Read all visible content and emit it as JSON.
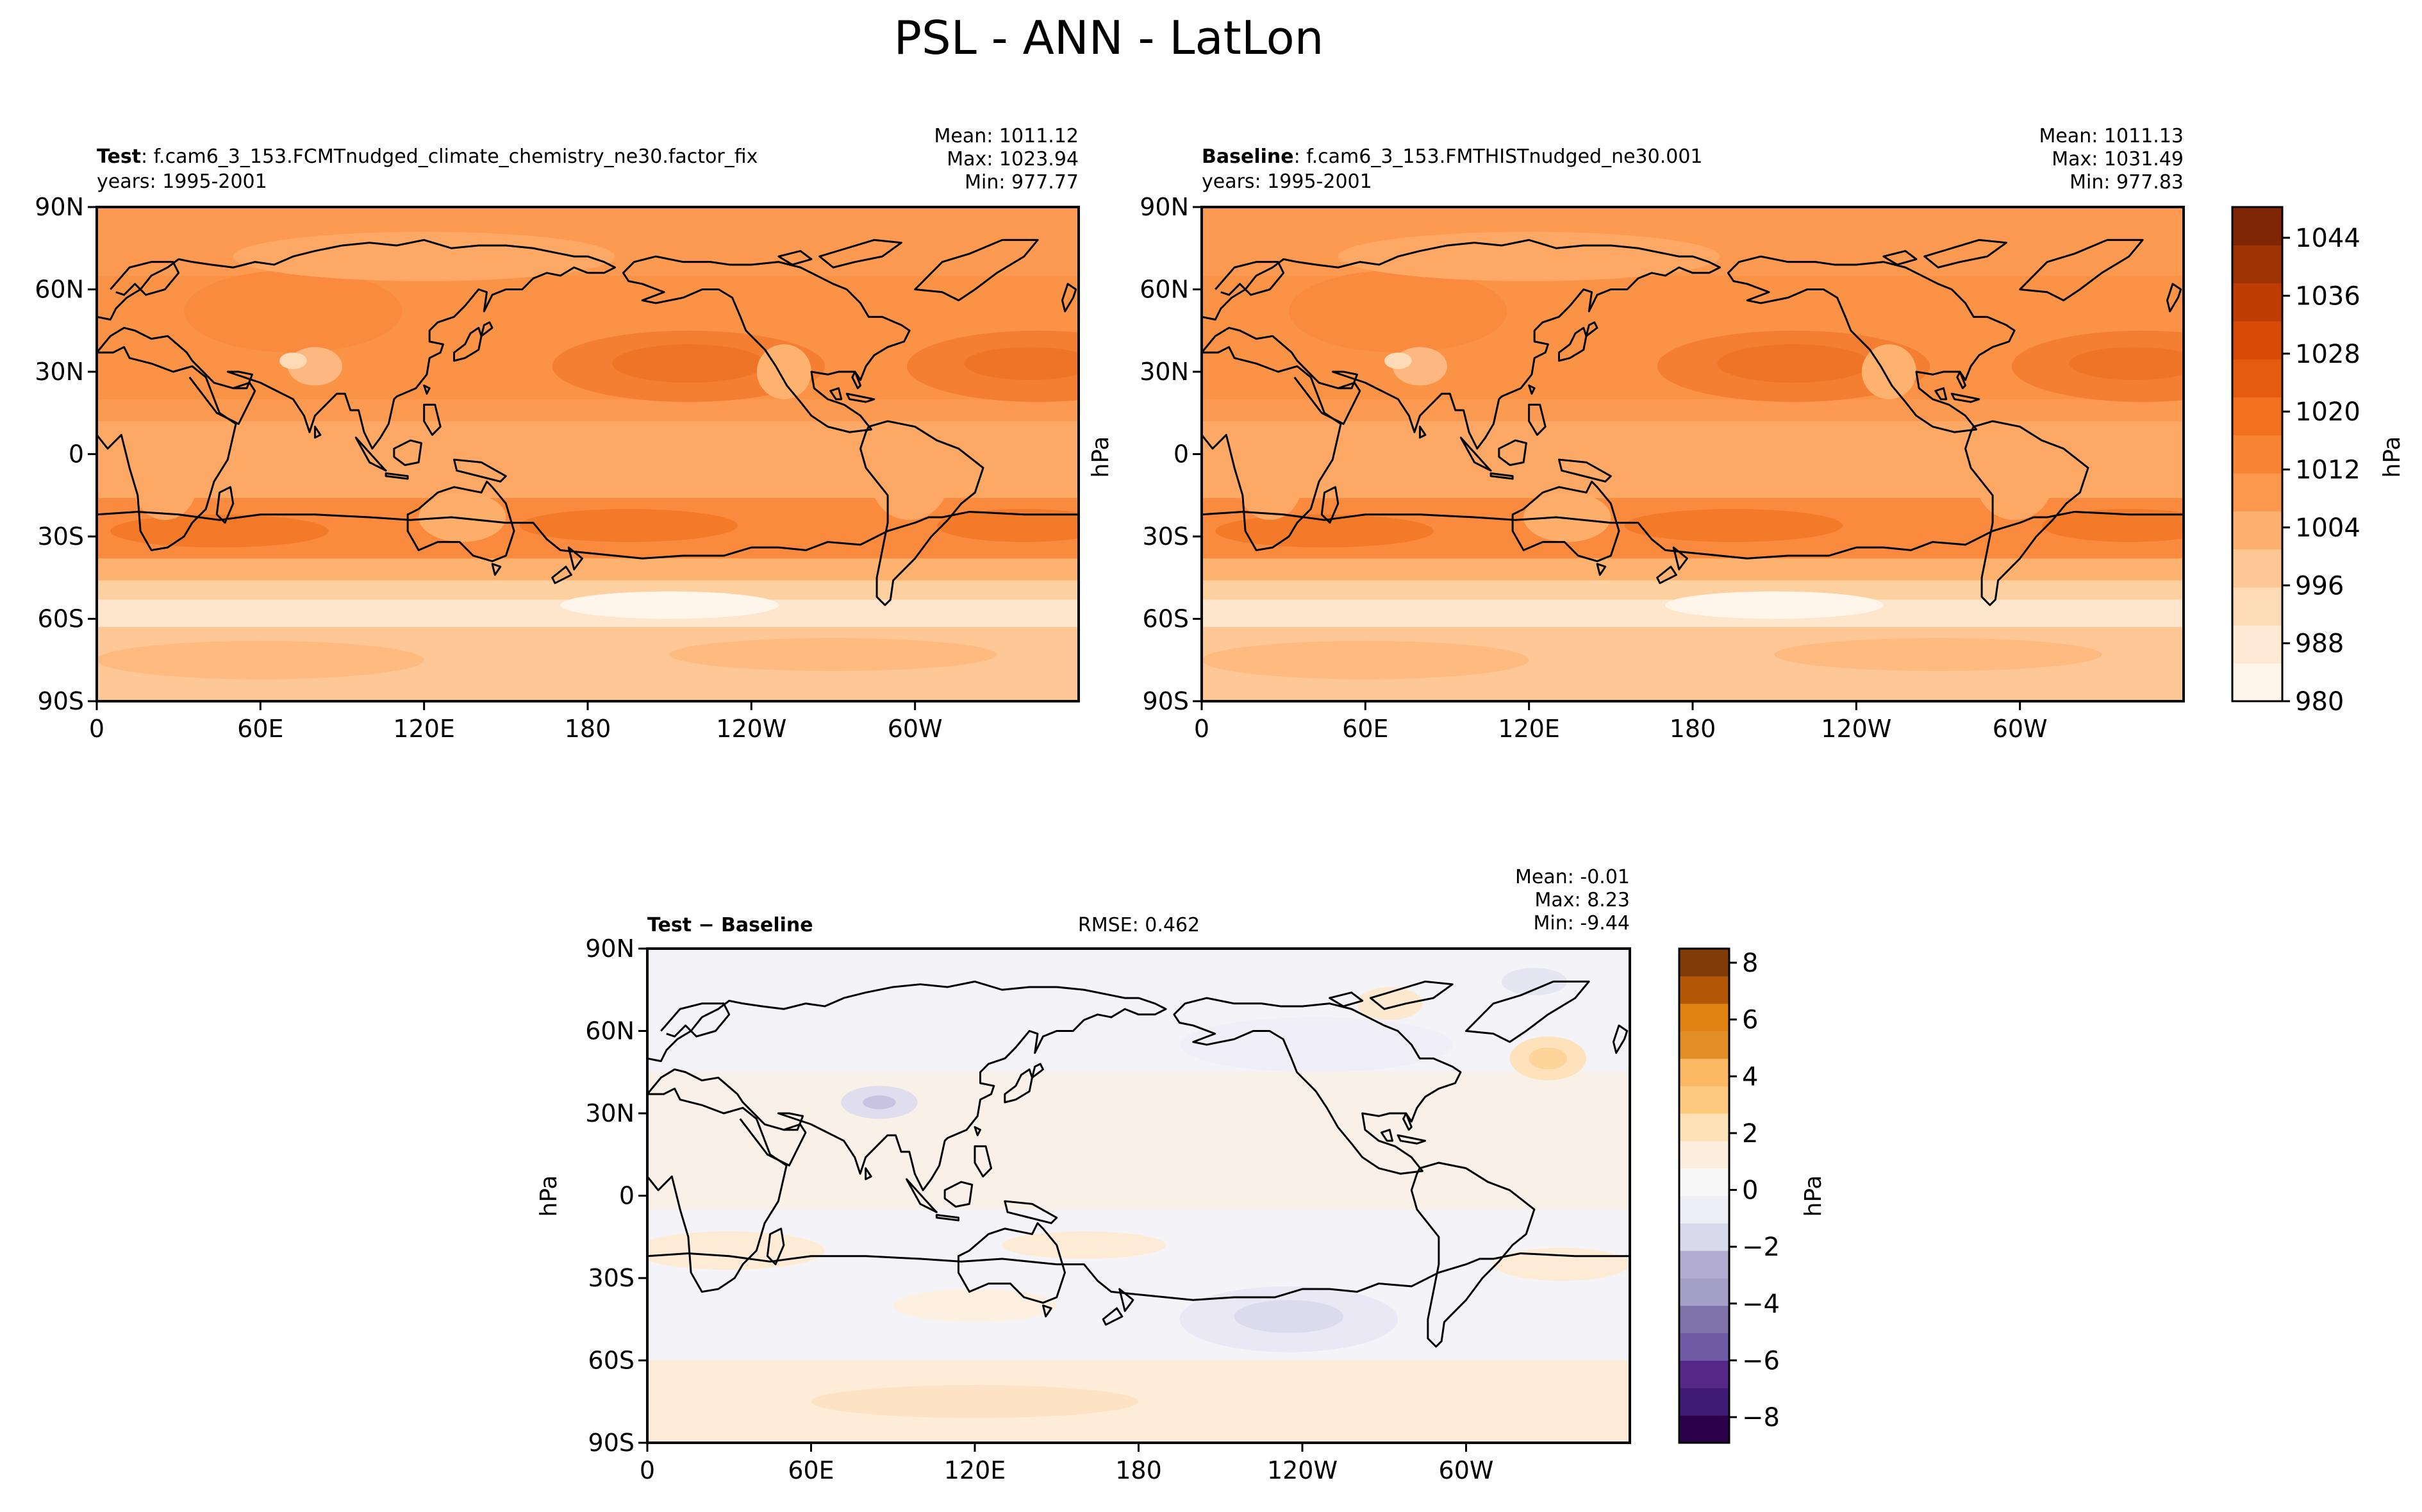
{
  "figure": {
    "title": "PSL - ANN - LatLon"
  },
  "axes": {
    "lat_ticks": [
      "90N",
      "60N",
      "30N",
      "0",
      "30S",
      "60S",
      "90S"
    ],
    "lon_ticks": [
      "0",
      "60E",
      "120E",
      "180",
      "120W",
      "60W"
    ]
  },
  "panels": [
    {
      "id": "test",
      "label_bold": "Test",
      "label_rest": ": f.cam6_3_153.FCMTnudged_climate_chemistry_ne30.factor_fix",
      "years": "years: 1995-2001",
      "stats": {
        "mean": "Mean: 1011.12",
        "max": "Max: 1023.94",
        "min": "Min: 977.77"
      }
    },
    {
      "id": "baseline",
      "label_bold": "Baseline",
      "label_rest": ": f.cam6_3_153.FMTHISTnudged_ne30.001",
      "years": "years: 1995-2001",
      "stats": {
        "mean": "Mean: 1011.13",
        "max": "Max: 1031.49",
        "min": "Min: 977.83"
      }
    },
    {
      "id": "diff",
      "label_bold": "Test − Baseline",
      "rmse": "RMSE: 0.462",
      "stats": {
        "mean": "Mean: -0.01",
        "max": "Max:  8.23",
        "min": "Min: -9.44"
      }
    }
  ],
  "colorbars": {
    "abs": {
      "unit": "hPa",
      "ticks": [
        "1044",
        "1036",
        "1028",
        "1020",
        "1012",
        "1004",
        "996",
        "988",
        "980"
      ],
      "colors": [
        "#fff5eb",
        "#fee9d4",
        "#fddbb7",
        "#fdc895",
        "#fdb06f",
        "#fd994f",
        "#f98434",
        "#f2711f",
        "#e65c0f",
        "#d84a06",
        "#bf3d03",
        "#9e3303",
        "#7f2704"
      ]
    },
    "diff": {
      "unit": "hPa",
      "ticks": [
        "8",
        "6",
        "4",
        "2",
        "0",
        "−2",
        "−4",
        "−6",
        "−8"
      ],
      "colors": [
        "#2d004b",
        "#3f1b75",
        "#542788",
        "#6f5ba6",
        "#8073ac",
        "#a49fc9",
        "#b2abd2",
        "#d8daeb",
        "#eeeef6",
        "#f7f7f7",
        "#fbeedd",
        "#fee0b6",
        "#fdc97f",
        "#fdb863",
        "#e28e26",
        "#e08214",
        "#b35806",
        "#7f3b08"
      ]
    },
    "unit_label_mid": "hPa",
    "unit_label_bottom": "hPa"
  }
}
